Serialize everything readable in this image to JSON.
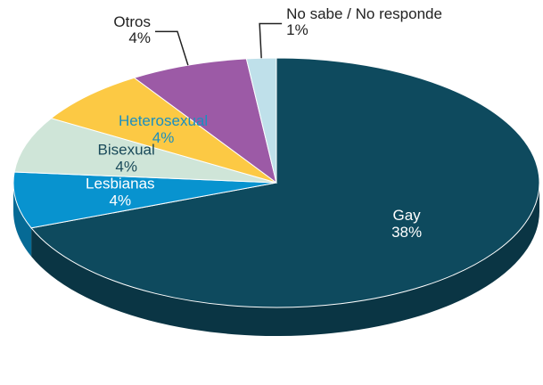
{
  "chart_data": {
    "type": "pie3d",
    "categories": [
      "Gay",
      "Lesbianas",
      "Bisexual",
      "Heterosexual",
      "Otros",
      "No sabe / No responde"
    ],
    "values": [
      38,
      4,
      4,
      4,
      4,
      1
    ],
    "value_labels": [
      "38%",
      "4%",
      "4%",
      "4%",
      "4%",
      "1%"
    ],
    "colors": [
      "#0e4a5e",
      "#0893cf",
      "#cfe5d8",
      "#fcc944",
      "#9c5aa6",
      "#bfe0ea"
    ],
    "label_colors": [
      "#ffffff",
      "#ffffff",
      "#1a4a5a",
      "#1a8fc0",
      "#222222",
      "#222222"
    ]
  }
}
